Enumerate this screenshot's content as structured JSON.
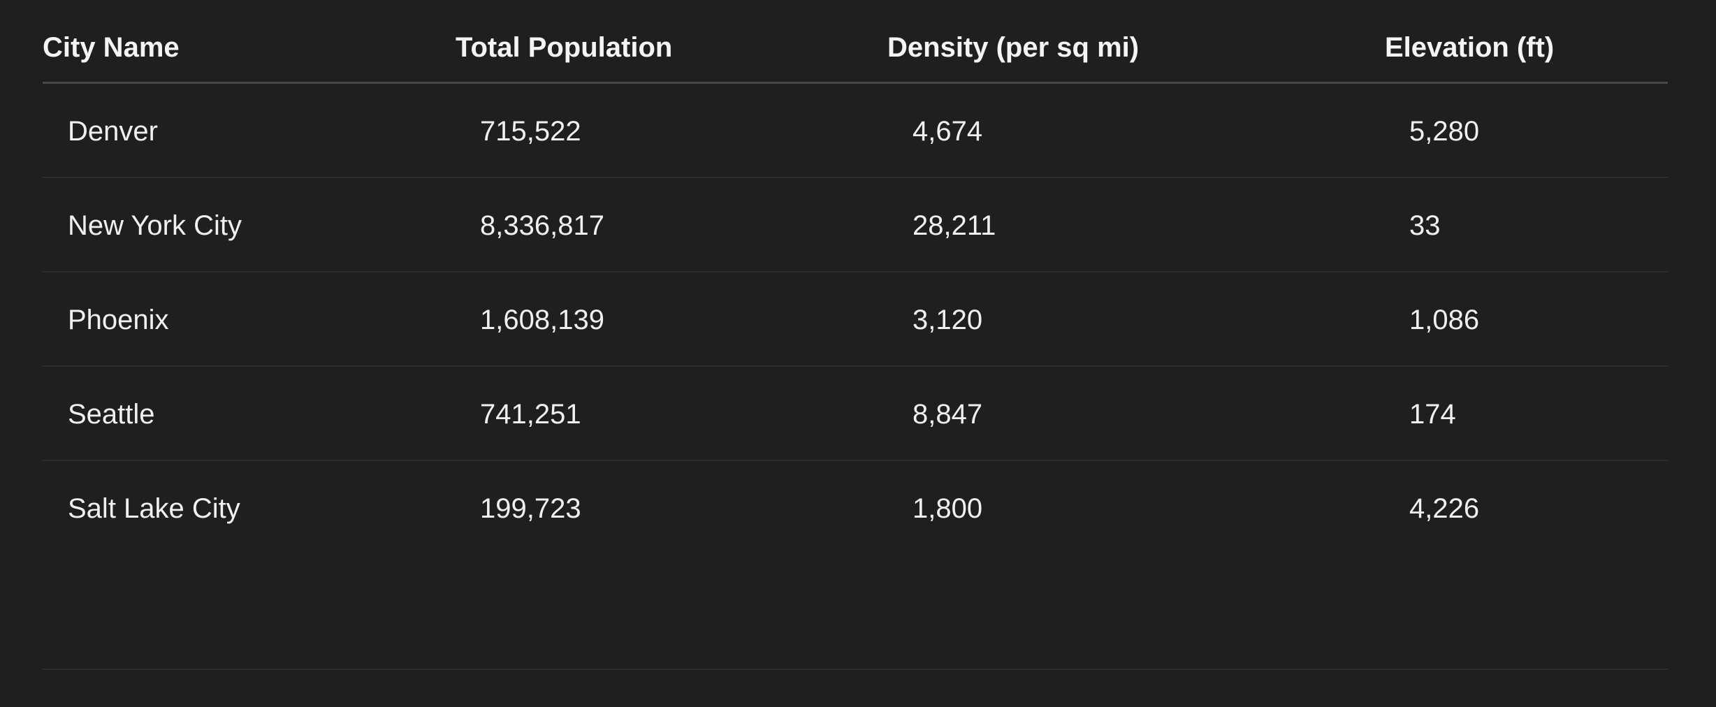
{
  "table": {
    "headers": [
      "City Name",
      "Total Population",
      "Density (per sq mi)",
      "Elevation (ft)"
    ],
    "rows": [
      [
        "Denver",
        "715,522",
        "4,674",
        "5,280"
      ],
      [
        "New York City",
        "8,336,817",
        "28,211",
        "33"
      ],
      [
        "Phoenix",
        "1,608,139",
        "3,120",
        "1,086"
      ],
      [
        "Seattle",
        "741,251",
        "8,847",
        "174"
      ],
      [
        "Salt Lake City",
        "199,723",
        "1,800",
        "4,226"
      ]
    ]
  },
  "colors": {
    "background": "#1f1f1f",
    "text": "#f2f2f2",
    "header_rule": "#474747",
    "row_rule": "#2c2c2c"
  }
}
